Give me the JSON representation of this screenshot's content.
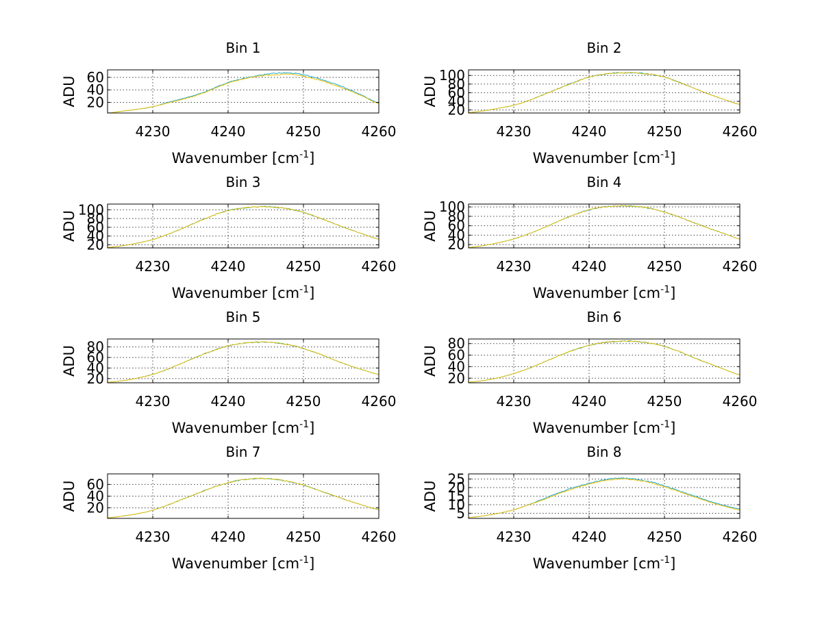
{
  "colors": {
    "background": "#ffffff",
    "axis": "#000000",
    "series": [
      "#1aa6c8",
      "#f2c200"
    ]
  },
  "chart_data": [
    {
      "type": "line",
      "title": "Bin 1",
      "xlabel": "Wavenumber [cm",
      "xlabel_sup": "-1",
      "xlabel_end": "]",
      "ylabel": "ADU",
      "xlim": [
        4224,
        4260
      ],
      "ylim": [
        3,
        72
      ],
      "xticks": [
        4230,
        4240,
        4250,
        4260
      ],
      "yticks": [
        20,
        40,
        60
      ],
      "grid": true,
      "series": [
        {
          "color": "#1aa6c8",
          "x": [
            4224,
            4226,
            4228,
            4230,
            4232,
            4234,
            4236,
            4238,
            4240,
            4242,
            4244,
            4246,
            4248,
            4250,
            4252,
            4254,
            4256,
            4258,
            4260
          ],
          "y": [
            3,
            6,
            9,
            13,
            20,
            26,
            33,
            42,
            52,
            58,
            63,
            66,
            67,
            64,
            58,
            50,
            41,
            30,
            19
          ]
        },
        {
          "color": "#f2c200",
          "x": [
            4224,
            4226,
            4228,
            4230,
            4232,
            4234,
            4236,
            4238,
            4240,
            4242,
            4244,
            4246,
            4248,
            4250,
            4252,
            4254,
            4256,
            4258,
            4260
          ],
          "y": [
            3,
            6,
            9,
            13,
            19,
            25,
            32,
            41,
            51,
            57,
            62,
            64,
            65,
            62,
            56,
            48,
            39,
            29,
            18
          ]
        }
      ]
    },
    {
      "type": "line",
      "title": "Bin 2",
      "xlabel": "Wavenumber [cm",
      "xlabel_sup": "-1",
      "xlabel_end": "]",
      "ylabel": "ADU",
      "xlim": [
        4224,
        4260
      ],
      "ylim": [
        13,
        113
      ],
      "xticks": [
        4230,
        4240,
        4250,
        4260
      ],
      "yticks": [
        20,
        40,
        60,
        80,
        100
      ],
      "ytick_labels": [
        "20",
        "40",
        "60",
        "80",
        "100"
      ],
      "grid": true,
      "series": [
        {
          "color": "#1aa6c8",
          "x": [
            4224,
            4226,
            4228,
            4230,
            4232,
            4234,
            4236,
            4238,
            4240,
            4242,
            4244,
            4246,
            4248,
            4250,
            4252,
            4254,
            4256,
            4258,
            4260
          ],
          "y": [
            14,
            18,
            24,
            31,
            42,
            56,
            70,
            84,
            96,
            103,
            106,
            106,
            103,
            96,
            84,
            70,
            56,
            44,
            33
          ]
        },
        {
          "color": "#f2c200",
          "x": [
            4224,
            4226,
            4228,
            4230,
            4232,
            4234,
            4236,
            4238,
            4240,
            4242,
            4244,
            4246,
            4248,
            4250,
            4252,
            4254,
            4256,
            4258,
            4260
          ],
          "y": [
            14,
            18,
            24,
            31,
            42,
            56,
            70,
            84,
            96,
            103,
            106,
            106,
            103,
            96,
            84,
            70,
            56,
            44,
            33
          ]
        }
      ]
    },
    {
      "type": "line",
      "title": "Bin 3",
      "xlabel": "Wavenumber [cm",
      "xlabel_sup": "-1",
      "xlabel_end": "]",
      "ylabel": "ADU",
      "xlim": [
        4224,
        4260
      ],
      "ylim": [
        13,
        113
      ],
      "xticks": [
        4230,
        4240,
        4250,
        4260
      ],
      "yticks": [
        20,
        40,
        60,
        80,
        100
      ],
      "grid": true,
      "series": [
        {
          "color": "#1aa6c8",
          "x": [
            4224,
            4226,
            4228,
            4230,
            4232,
            4234,
            4236,
            4238,
            4240,
            4242,
            4244,
            4246,
            4248,
            4250,
            4252,
            4254,
            4256,
            4258,
            4260
          ],
          "y": [
            14,
            18,
            24,
            32,
            44,
            58,
            73,
            87,
            98,
            104,
            107,
            106,
            102,
            94,
            82,
            69,
            56,
            44,
            33
          ]
        },
        {
          "color": "#f2c200",
          "x": [
            4224,
            4226,
            4228,
            4230,
            4232,
            4234,
            4236,
            4238,
            4240,
            4242,
            4244,
            4246,
            4248,
            4250,
            4252,
            4254,
            4256,
            4258,
            4260
          ],
          "y": [
            14,
            18,
            24,
            32,
            44,
            58,
            73,
            87,
            98,
            104,
            107,
            106,
            102,
            94,
            82,
            69,
            56,
            44,
            33
          ]
        }
      ]
    },
    {
      "type": "line",
      "title": "Bin 4",
      "xlabel": "Wavenumber [cm",
      "xlabel_sup": "-1",
      "xlabel_end": "]",
      "ylabel": "ADU",
      "xlim": [
        4224,
        4260
      ],
      "ylim": [
        13,
        106
      ],
      "xticks": [
        4230,
        4240,
        4250,
        4260
      ],
      "yticks": [
        20,
        40,
        60,
        80,
        100
      ],
      "grid": true,
      "series": [
        {
          "color": "#1aa6c8",
          "x": [
            4224,
            4226,
            4228,
            4230,
            4232,
            4234,
            4236,
            4238,
            4240,
            4242,
            4244,
            4246,
            4248,
            4250,
            4252,
            4254,
            4256,
            4258,
            4260
          ],
          "y": [
            14,
            18,
            24,
            32,
            43,
            56,
            70,
            83,
            94,
            100,
            102,
            101,
            97,
            89,
            78,
            66,
            54,
            43,
            32
          ]
        },
        {
          "color": "#f2c200",
          "x": [
            4224,
            4226,
            4228,
            4230,
            4232,
            4234,
            4236,
            4238,
            4240,
            4242,
            4244,
            4246,
            4248,
            4250,
            4252,
            4254,
            4256,
            4258,
            4260
          ],
          "y": [
            14,
            18,
            24,
            32,
            43,
            56,
            70,
            83,
            94,
            100,
            102,
            101,
            97,
            89,
            78,
            66,
            54,
            43,
            32
          ]
        }
      ]
    },
    {
      "type": "line",
      "title": "Bin 5",
      "xlabel": "Wavenumber [cm",
      "xlabel_sup": "-1",
      "xlabel_end": "]",
      "ylabel": "ADU",
      "xlim": [
        4224,
        4260
      ],
      "ylim": [
        12,
        95
      ],
      "xticks": [
        4230,
        4240,
        4250,
        4260
      ],
      "yticks": [
        20,
        40,
        60,
        80
      ],
      "grid": true,
      "series": [
        {
          "color": "#1aa6c8",
          "x": [
            4224,
            4226,
            4228,
            4230,
            4232,
            4234,
            4236,
            4238,
            4240,
            4242,
            4244,
            4246,
            4248,
            4250,
            4252,
            4254,
            4256,
            4258,
            4260
          ],
          "y": [
            13,
            16,
            21,
            28,
            38,
            50,
            62,
            73,
            82,
            87,
            89,
            88,
            84,
            77,
            67,
            56,
            45,
            36,
            28
          ]
        },
        {
          "color": "#f2c200",
          "x": [
            4224,
            4226,
            4228,
            4230,
            4232,
            4234,
            4236,
            4238,
            4240,
            4242,
            4244,
            4246,
            4248,
            4250,
            4252,
            4254,
            4256,
            4258,
            4260
          ],
          "y": [
            13,
            16,
            21,
            28,
            38,
            50,
            62,
            73,
            82,
            87,
            89,
            88,
            84,
            77,
            67,
            56,
            45,
            36,
            28
          ]
        }
      ]
    },
    {
      "type": "line",
      "title": "Bin 6",
      "xlabel": "Wavenumber [cm",
      "xlabel_sup": "-1",
      "xlabel_end": "]",
      "ylabel": "ADU",
      "xlim": [
        4224,
        4260
      ],
      "ylim": [
        12,
        88
      ],
      "xticks": [
        4230,
        4240,
        4250,
        4260
      ],
      "yticks": [
        20,
        40,
        60,
        80
      ],
      "grid": true,
      "series": [
        {
          "color": "#1aa6c8",
          "x": [
            4224,
            4226,
            4228,
            4230,
            4232,
            4234,
            4236,
            4238,
            4240,
            4242,
            4244,
            4246,
            4248,
            4250,
            4252,
            4254,
            4256,
            4258,
            4260
          ],
          "y": [
            13,
            16,
            21,
            28,
            37,
            48,
            59,
            69,
            77,
            82,
            84,
            84,
            81,
            75,
            66,
            55,
            45,
            35,
            26
          ]
        },
        {
          "color": "#f2c200",
          "x": [
            4224,
            4226,
            4228,
            4230,
            4232,
            4234,
            4236,
            4238,
            4240,
            4242,
            4244,
            4246,
            4248,
            4250,
            4252,
            4254,
            4256,
            4258,
            4260
          ],
          "y": [
            13,
            16,
            21,
            28,
            37,
            48,
            59,
            69,
            77,
            82,
            84,
            84,
            81,
            75,
            66,
            55,
            45,
            35,
            26
          ]
        }
      ]
    },
    {
      "type": "line",
      "title": "Bin 7",
      "xlabel": "Wavenumber [cm",
      "xlabel_sup": "-1",
      "xlabel_end": "]",
      "ylabel": "ADU",
      "xlim": [
        4224,
        4260
      ],
      "ylim": [
        2,
        78
      ],
      "xticks": [
        4230,
        4240,
        4250,
        4260
      ],
      "yticks": [
        20,
        40,
        60
      ],
      "grid": true,
      "series": [
        {
          "color": "#1aa6c8",
          "x": [
            4224,
            4226,
            4228,
            4230,
            4232,
            4234,
            4236,
            4238,
            4240,
            4242,
            4244,
            4246,
            4248,
            4250,
            4252,
            4254,
            4256,
            4258,
            4260
          ],
          "y": [
            3,
            6,
            10,
            16,
            25,
            35,
            45,
            55,
            63,
            68,
            70,
            69,
            65,
            59,
            50,
            41,
            32,
            24,
            17
          ]
        },
        {
          "color": "#f2c200",
          "x": [
            4224,
            4226,
            4228,
            4230,
            4232,
            4234,
            4236,
            4238,
            4240,
            4242,
            4244,
            4246,
            4248,
            4250,
            4252,
            4254,
            4256,
            4258,
            4260
          ],
          "y": [
            3,
            6,
            10,
            16,
            25,
            35,
            45,
            55,
            63,
            68,
            70,
            69,
            65,
            59,
            50,
            41,
            32,
            24,
            17
          ]
        }
      ]
    },
    {
      "type": "line",
      "title": "Bin 8",
      "xlabel": "Wavenumber [cm",
      "xlabel_sup": "-1",
      "xlabel_end": "]",
      "ylabel": "ADU",
      "xlim": [
        4224,
        4260
      ],
      "ylim": [
        2,
        28
      ],
      "xticks": [
        4230,
        4240,
        4250,
        4260
      ],
      "yticks": [
        5,
        10,
        15,
        20,
        25
      ],
      "grid": true,
      "series": [
        {
          "color": "#1aa6c8",
          "x": [
            4224,
            4226,
            4228,
            4230,
            4232,
            4234,
            4236,
            4238,
            4240,
            4242,
            4244,
            4246,
            4248,
            4250,
            4252,
            4254,
            4256,
            4258,
            4260
          ],
          "y": [
            2.5,
            3.5,
            5,
            7,
            10,
            13.5,
            17,
            20,
            22.5,
            24.5,
            25.5,
            25,
            23.5,
            21,
            18,
            15,
            12,
            9.5,
            7.5
          ]
        },
        {
          "color": "#f2c200",
          "x": [
            4224,
            4226,
            4228,
            4230,
            4232,
            4234,
            4236,
            4238,
            4240,
            4242,
            4244,
            4246,
            4248,
            4250,
            4252,
            4254,
            4256,
            4258,
            4260
          ],
          "y": [
            2.5,
            3.5,
            5,
            7,
            10,
            13,
            16.5,
            19.5,
            22,
            24,
            25,
            24.5,
            23,
            20.5,
            17.5,
            14.5,
            11.5,
            9,
            7
          ]
        }
      ]
    }
  ]
}
